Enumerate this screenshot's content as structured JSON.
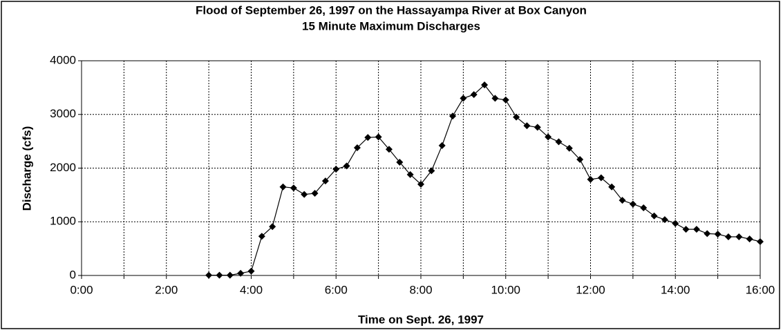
{
  "chart_data": {
    "type": "line",
    "title": "Flood of September 26, 1997 on the Hassayampa River at Box Canyon",
    "subtitle": "15 Minute Maximum Discharges",
    "x_label": "Time on Sept. 26, 1997",
    "y_label": "Discharge (cfs)",
    "x": [
      3,
      3.25,
      3.5,
      3.75,
      4,
      4.25,
      4.5,
      4.75,
      5,
      5.25,
      5.5,
      5.75,
      6,
      6.25,
      6.5,
      6.75,
      7,
      7.25,
      7.5,
      7.75,
      8,
      8.25,
      8.5,
      8.75,
      9,
      9.25,
      9.5,
      9.75,
      10,
      10.25,
      10.5,
      10.75,
      11,
      11.25,
      11.5,
      11.75,
      12,
      12.25,
      12.5,
      12.75,
      13,
      13.25,
      13.5,
      13.75,
      14,
      14.25,
      14.5,
      14.75,
      15,
      15.25,
      15.5,
      15.75,
      16
    ],
    "series": [
      {
        "color": "#000000",
        "values": [
          5,
          5,
          5,
          40,
          80,
          730,
          910,
          1650,
          1630,
          1510,
          1530,
          1760,
          1980,
          2040,
          2380,
          2570,
          2580,
          2350,
          2110,
          1880,
          1700,
          1950,
          2420,
          2970,
          3300,
          3370,
          3550,
          3300,
          3270,
          2950,
          2790,
          2760,
          2580,
          2490,
          2370,
          2160,
          1790,
          1820,
          1650,
          1400,
          1330,
          1260,
          1110,
          1040,
          970,
          860,
          860,
          780,
          770,
          720,
          720,
          680,
          630
        ]
      }
    ],
    "xlim": [
      0,
      16
    ],
    "xticks": [
      {
        "value": 0,
        "label": "0:00"
      },
      {
        "value": 2,
        "label": "2:00"
      },
      {
        "value": 4,
        "label": "4:00"
      },
      {
        "value": 6,
        "label": "6:00"
      },
      {
        "value": 8,
        "label": "8:00"
      },
      {
        "value": 10,
        "label": "10:00"
      },
      {
        "value": 12,
        "label": "12:00"
      },
      {
        "value": 14,
        "label": "14:00"
      },
      {
        "value": 16,
        "label": "16:00"
      }
    ],
    "xminor": [
      1,
      3,
      5,
      7,
      9,
      11,
      13,
      15
    ],
    "ylim": [
      0,
      4000
    ],
    "yticks": [
      0,
      1000,
      2000,
      3000,
      4000
    ],
    "grid": true
  }
}
